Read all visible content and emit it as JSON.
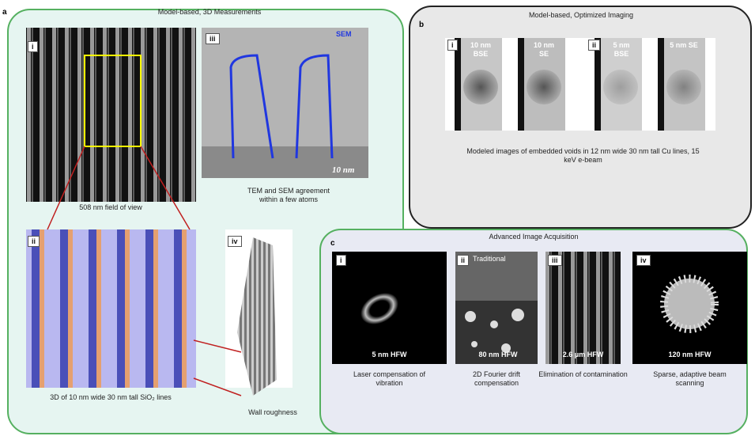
{
  "panel_a": {
    "letter": "a",
    "title": "Model-based, 3D Measurements",
    "images": [
      {
        "label": "i",
        "caption": "508 nm field of view"
      },
      {
        "label": "iii",
        "tag": "SEM",
        "scale": "10 nm",
        "caption": "TEM and SEM agreement within a few atoms"
      },
      {
        "label": "ii",
        "caption": "3D of 10 nm wide 30 nm tall SiO₂ lines"
      },
      {
        "label": "iv",
        "caption": "Wall roughness"
      }
    ]
  },
  "panel_b": {
    "letter": "b",
    "title": "Model-based, Optimized Imaging",
    "groups": [
      {
        "label": "i",
        "columns": [
          "10 nm BSE",
          "10 nm SE"
        ]
      },
      {
        "label": "ii",
        "columns": [
          "5 nm BSE",
          "5 nm SE"
        ]
      }
    ],
    "caption": "Modeled images of embedded voids in 12 nm wide 30 nm tall Cu lines, 15 keV e-beam"
  },
  "panel_c": {
    "letter": "c",
    "title": "Advanced Image Acquisition",
    "images": [
      {
        "label": "i",
        "scale": "5 nm HFW",
        "caption": "Laser compensation of vibration"
      },
      {
        "label": "ii",
        "tag": "Traditional",
        "scale": "80 nm HFW",
        "caption": "2D Fourier drift compensation"
      },
      {
        "label": "iii",
        "scale": "2.6 μm HFW",
        "caption": "Elimination of contamination"
      },
      {
        "label": "iv",
        "scale": "120 nm HFW",
        "caption": "Sparse, adaptive beam scanning"
      }
    ]
  }
}
